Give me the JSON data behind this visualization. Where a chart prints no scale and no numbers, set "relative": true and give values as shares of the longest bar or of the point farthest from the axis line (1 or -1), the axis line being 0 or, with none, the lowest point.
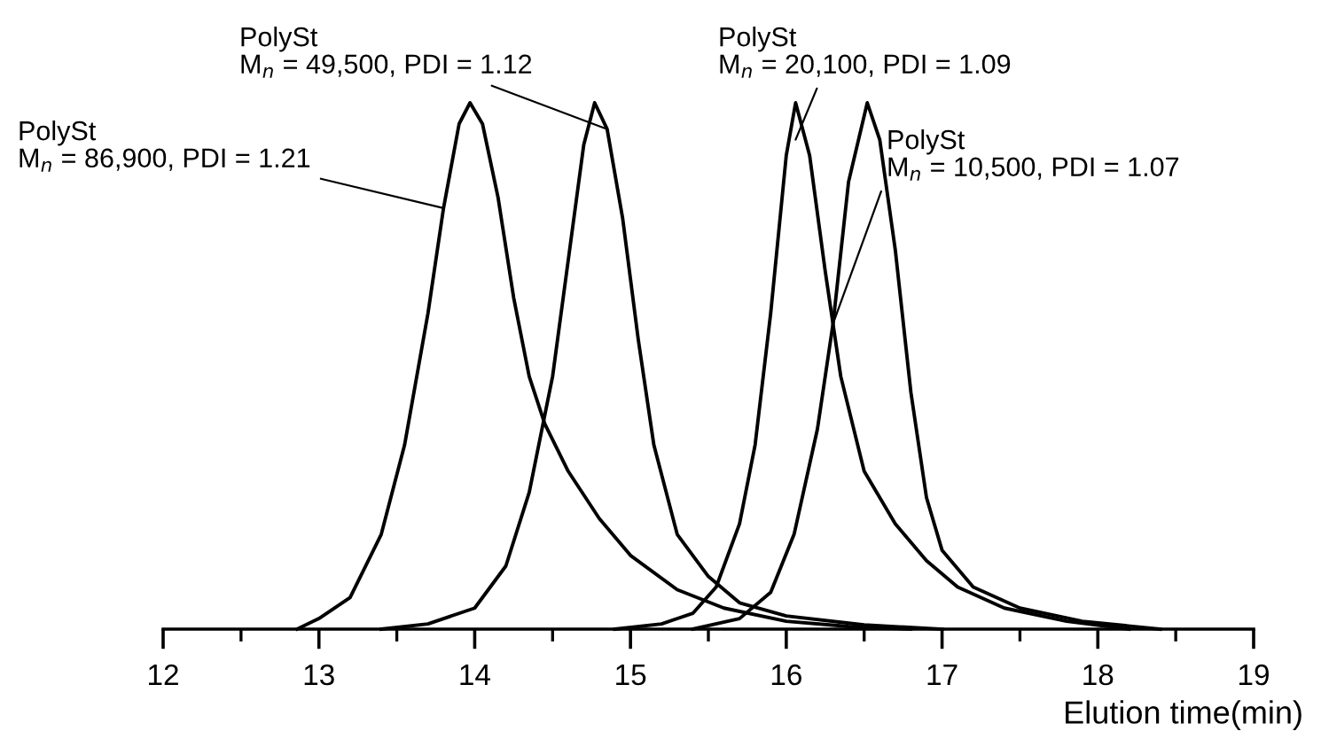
{
  "chart_data": {
    "type": "line",
    "relative": true,
    "xlabel": "Elution time(min)",
    "xlim": [
      12,
      19
    ],
    "xticks": [
      12,
      {
        "value": 12.5,
        "label": null
      },
      13,
      {
        "value": 13.5,
        "label": null
      },
      14,
      {
        "value": 14.5,
        "label": null
      },
      15,
      {
        "value": 15.5,
        "label": null
      },
      16,
      {
        "value": 16.5,
        "label": null
      },
      17,
      {
        "value": 17.5,
        "label": null
      },
      18,
      {
        "value": 18.5,
        "label": null
      },
      19
    ],
    "grid": false,
    "legend": false,
    "marker": "none",
    "line_style": "solid",
    "series": [
      {
        "color": "#000000",
        "x": [
          12.86,
          13.0,
          13.2,
          13.4,
          13.55,
          13.7,
          13.8,
          13.9,
          13.97,
          14.05,
          14.15,
          14.25,
          14.35,
          14.45,
          14.6,
          14.8,
          15.0,
          15.3,
          15.6,
          16.0,
          16.4,
          16.8
        ],
        "values": [
          0,
          0.02,
          0.06,
          0.18,
          0.35,
          0.6,
          0.8,
          0.96,
          1.0,
          0.96,
          0.82,
          0.63,
          0.48,
          0.39,
          0.3,
          0.21,
          0.14,
          0.075,
          0.04,
          0.015,
          0.005,
          0
        ]
      },
      {
        "color": "#000000",
        "x": [
          13.4,
          13.7,
          14.0,
          14.2,
          14.35,
          14.5,
          14.6,
          14.7,
          14.77,
          14.85,
          14.95,
          15.05,
          15.15,
          15.3,
          15.5,
          15.7,
          16.0,
          16.5,
          17.0
        ],
        "values": [
          0,
          0.01,
          0.04,
          0.12,
          0.26,
          0.48,
          0.7,
          0.92,
          1.0,
          0.95,
          0.78,
          0.55,
          0.35,
          0.18,
          0.1,
          0.05,
          0.025,
          0.008,
          0
        ]
      },
      {
        "color": "#000000",
        "x": [
          14.9,
          15.2,
          15.4,
          15.55,
          15.7,
          15.8,
          15.9,
          16.0,
          16.06,
          16.15,
          16.25,
          16.35,
          16.5,
          16.7,
          16.9,
          17.1,
          17.4,
          17.8,
          18.2
        ],
        "values": [
          0,
          0.01,
          0.03,
          0.08,
          0.2,
          0.35,
          0.6,
          0.9,
          1.0,
          0.9,
          0.68,
          0.48,
          0.3,
          0.2,
          0.13,
          0.08,
          0.04,
          0.015,
          0
        ]
      },
      {
        "color": "#000000",
        "x": [
          15.4,
          15.7,
          15.9,
          16.05,
          16.2,
          16.3,
          16.4,
          16.52,
          16.6,
          16.7,
          16.8,
          16.9,
          17.0,
          17.2,
          17.5,
          17.9,
          18.4
        ],
        "values": [
          0,
          0.02,
          0.07,
          0.18,
          0.38,
          0.58,
          0.85,
          1.0,
          0.93,
          0.72,
          0.45,
          0.25,
          0.15,
          0.08,
          0.04,
          0.015,
          0
        ]
      }
    ],
    "annotations": [
      {
        "text": "PolySt\nM$_{n}$ = 86,900, PDI = 1.21",
        "x": 13.8,
        "y": 0.8
      },
      {
        "text": "PolySt\nM$_{n}$ = 49,500, PDI = 1.12",
        "x": 14.85,
        "y": 0.95
      },
      {
        "text": "PolySt\nM$_{n}$ = 20,100, PDI = 1.09",
        "x": 16.06,
        "y": 0.93
      },
      {
        "text": "PolySt\nM$_{n}$ = 10,500, PDI = 1.07",
        "x": 16.3,
        "y": 0.58
      }
    ]
  }
}
